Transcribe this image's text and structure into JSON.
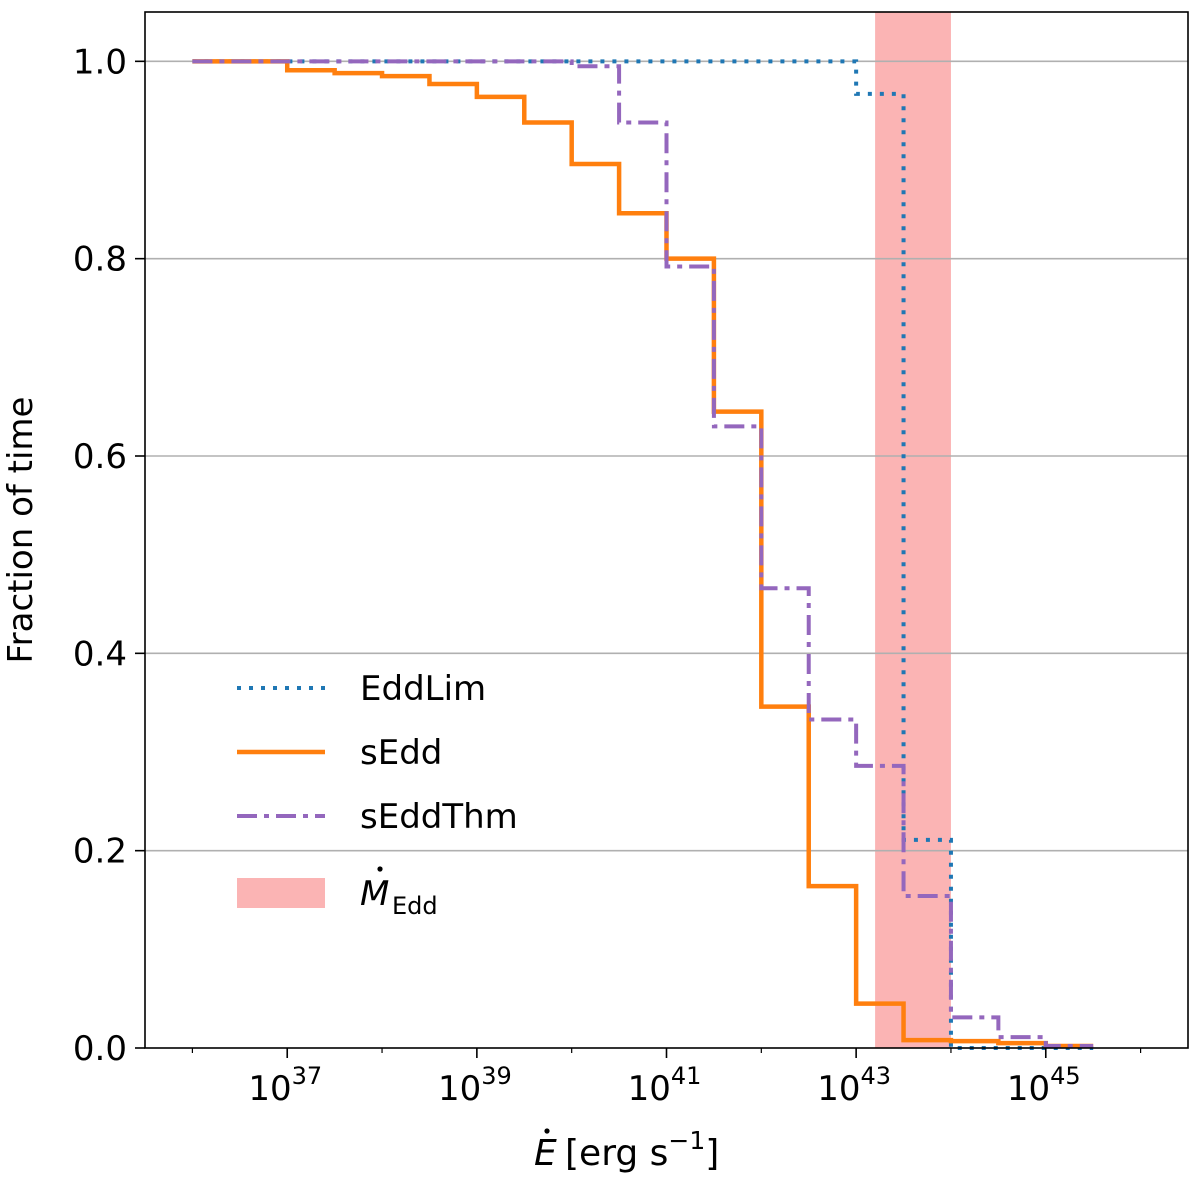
{
  "chart_data": {
    "type": "line",
    "drawstyle": "steps-post",
    "title": "",
    "xlabel": "Ė [erg s⁻¹]",
    "xlabel_parts": {
      "symbol": "E",
      "unit_open": "[erg s",
      "unit_exp": "−1",
      "unit_close": "]"
    },
    "ylabel": "Fraction of time",
    "xscale": "log",
    "xlim_log10": [
      35.5,
      46.5
    ],
    "ylim": [
      0.0,
      1.05
    ],
    "grid": "y",
    "x_ticks": [
      {
        "base": "10",
        "exp": "37",
        "log10": 37
      },
      {
        "base": "10",
        "exp": "39",
        "log10": 39
      },
      {
        "base": "10",
        "exp": "41",
        "log10": 41
      },
      {
        "base": "10",
        "exp": "43",
        "log10": 43
      },
      {
        "base": "10",
        "exp": "45",
        "log10": 45
      }
    ],
    "y_ticks": [
      {
        "value": 0.0,
        "label": "0.0"
      },
      {
        "value": 0.2,
        "label": "0.2"
      },
      {
        "value": 0.4,
        "label": "0.4"
      },
      {
        "value": 0.6,
        "label": "0.6"
      },
      {
        "value": 0.8,
        "label": "0.8"
      },
      {
        "value": 1.0,
        "label": "1.0"
      }
    ],
    "band": {
      "name": "Ṁ_Edd",
      "label_main": "M",
      "label_sub": "Edd",
      "x_log10_range": [
        43.2,
        44.0
      ],
      "color": "#fbb4b4"
    },
    "series": [
      {
        "name": "EddLim",
        "color": "#1f77b4",
        "linestyle": "dotted",
        "x_log10": [
          36.0,
          43.0,
          43.5,
          44.0,
          44.5,
          45.0,
          45.5
        ],
        "y": [
          1.0,
          0.967,
          0.211,
          0.0,
          0.0,
          0.0,
          0.0
        ]
      },
      {
        "name": "sEdd",
        "color": "#ff7f0e",
        "linestyle": "solid",
        "x_log10": [
          36.0,
          37.0,
          37.5,
          38.0,
          38.5,
          39.0,
          39.5,
          40.0,
          40.5,
          41.0,
          41.5,
          42.0,
          42.5,
          43.0,
          43.5,
          44.0,
          44.5,
          45.0,
          45.5
        ],
        "y": [
          1.0,
          0.991,
          0.988,
          0.985,
          0.977,
          0.964,
          0.938,
          0.896,
          0.846,
          0.8,
          0.645,
          0.346,
          0.164,
          0.045,
          0.008,
          0.007,
          0.005,
          0.002,
          0.002
        ]
      },
      {
        "name": "sEddThm",
        "color": "#9467bd",
        "linestyle": "dashdot",
        "x_log10": [
          36.0,
          40.0,
          40.5,
          41.0,
          41.5,
          42.0,
          42.5,
          43.0,
          43.5,
          44.0,
          44.5,
          45.0,
          45.5
        ],
        "y": [
          1.0,
          0.995,
          0.938,
          0.792,
          0.63,
          0.466,
          0.333,
          0.286,
          0.154,
          0.031,
          0.011,
          0.002,
          0.002
        ]
      }
    ]
  }
}
